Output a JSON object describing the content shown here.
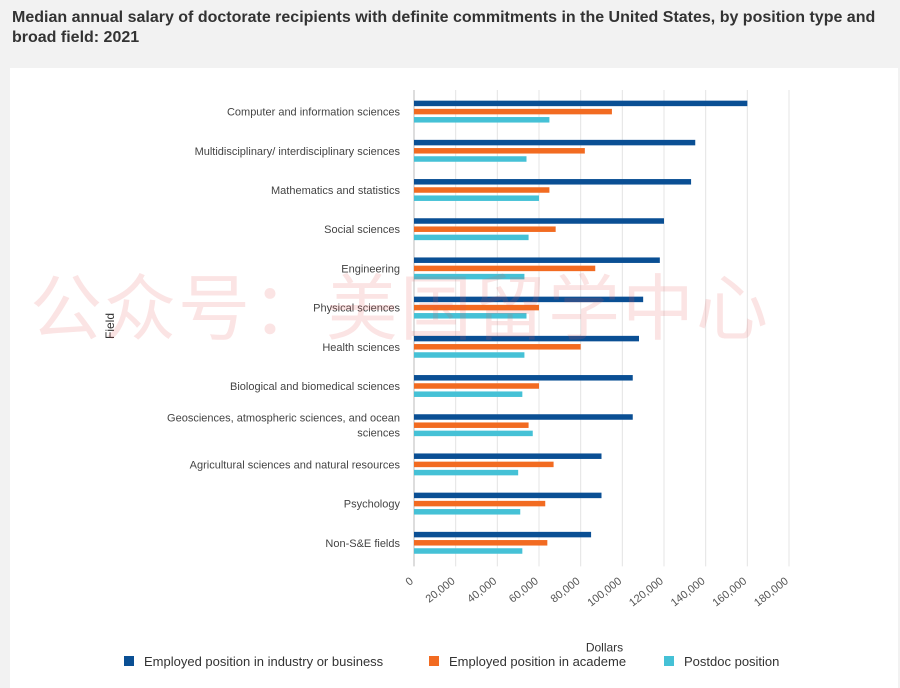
{
  "page": {
    "title": "Median annual salary of doctorate recipients with definite commitments in the United States, by position type and broad field: 2021",
    "watermark": "公众号：美国留学中心"
  },
  "colors": {
    "industry": "#0a4f94",
    "academe": "#f26b21",
    "postdoc": "#45c1d6",
    "grid": "#e4e4e4",
    "axis": "#bbbbbb"
  },
  "chart_data": {
    "type": "bar",
    "orientation": "horizontal",
    "title": "Median annual salary of doctorate recipients with definite commitments in the United States, by position type and broad field: 2021",
    "xlabel": "Dollars",
    "ylabel": "Field",
    "xlim": [
      0,
      180000
    ],
    "x_ticks": [
      "0",
      "20,000",
      "40,000",
      "60,000",
      "80,000",
      "100,000",
      "120,000",
      "140,000",
      "160,000",
      "180,000"
    ],
    "x_tick_values": [
      0,
      20000,
      40000,
      60000,
      80000,
      100000,
      120000,
      140000,
      160000,
      180000
    ],
    "grid": true,
    "legend_position": "bottom",
    "categories": [
      "Computer and information sciences",
      "Multidisciplinary/ interdisciplinary sciences",
      "Mathematics and statistics",
      "Social sciences",
      "Engineering",
      "Physical sciences",
      "Health sciences",
      "Biological and biomedical sciences",
      "Geosciences, atmospheric sciences, and ocean sciences",
      "Agricultural sciences and natural resources",
      "Psychology",
      "Non-S&E fields"
    ],
    "category_lines": [
      [
        "Computer and information sciences"
      ],
      [
        "Multidisciplinary/ interdisciplinary sciences"
      ],
      [
        "Mathematics and statistics"
      ],
      [
        "Social sciences"
      ],
      [
        "Engineering"
      ],
      [
        "Physical sciences"
      ],
      [
        "Health sciences"
      ],
      [
        "Biological and biomedical sciences"
      ],
      [
        "Geosciences, atmospheric sciences, and ocean",
        "sciences"
      ],
      [
        "Agricultural sciences and natural resources"
      ],
      [
        "Psychology"
      ],
      [
        "Non-S&E fields"
      ]
    ],
    "series": [
      {
        "name": "Employed position in industry or business",
        "color_key": "industry",
        "values": [
          160000,
          135000,
          133000,
          120000,
          118000,
          110000,
          108000,
          105000,
          105000,
          90000,
          90000,
          85000
        ]
      },
      {
        "name": "Employed position in academe",
        "color_key": "academe",
        "values": [
          95000,
          82000,
          65000,
          68000,
          87000,
          60000,
          80000,
          60000,
          55000,
          67000,
          63000,
          64000
        ]
      },
      {
        "name": "Postdoc position",
        "color_key": "postdoc",
        "values": [
          65000,
          54000,
          60000,
          55000,
          53000,
          54000,
          53000,
          52000,
          57000,
          50000,
          51000,
          52000
        ]
      }
    ]
  }
}
